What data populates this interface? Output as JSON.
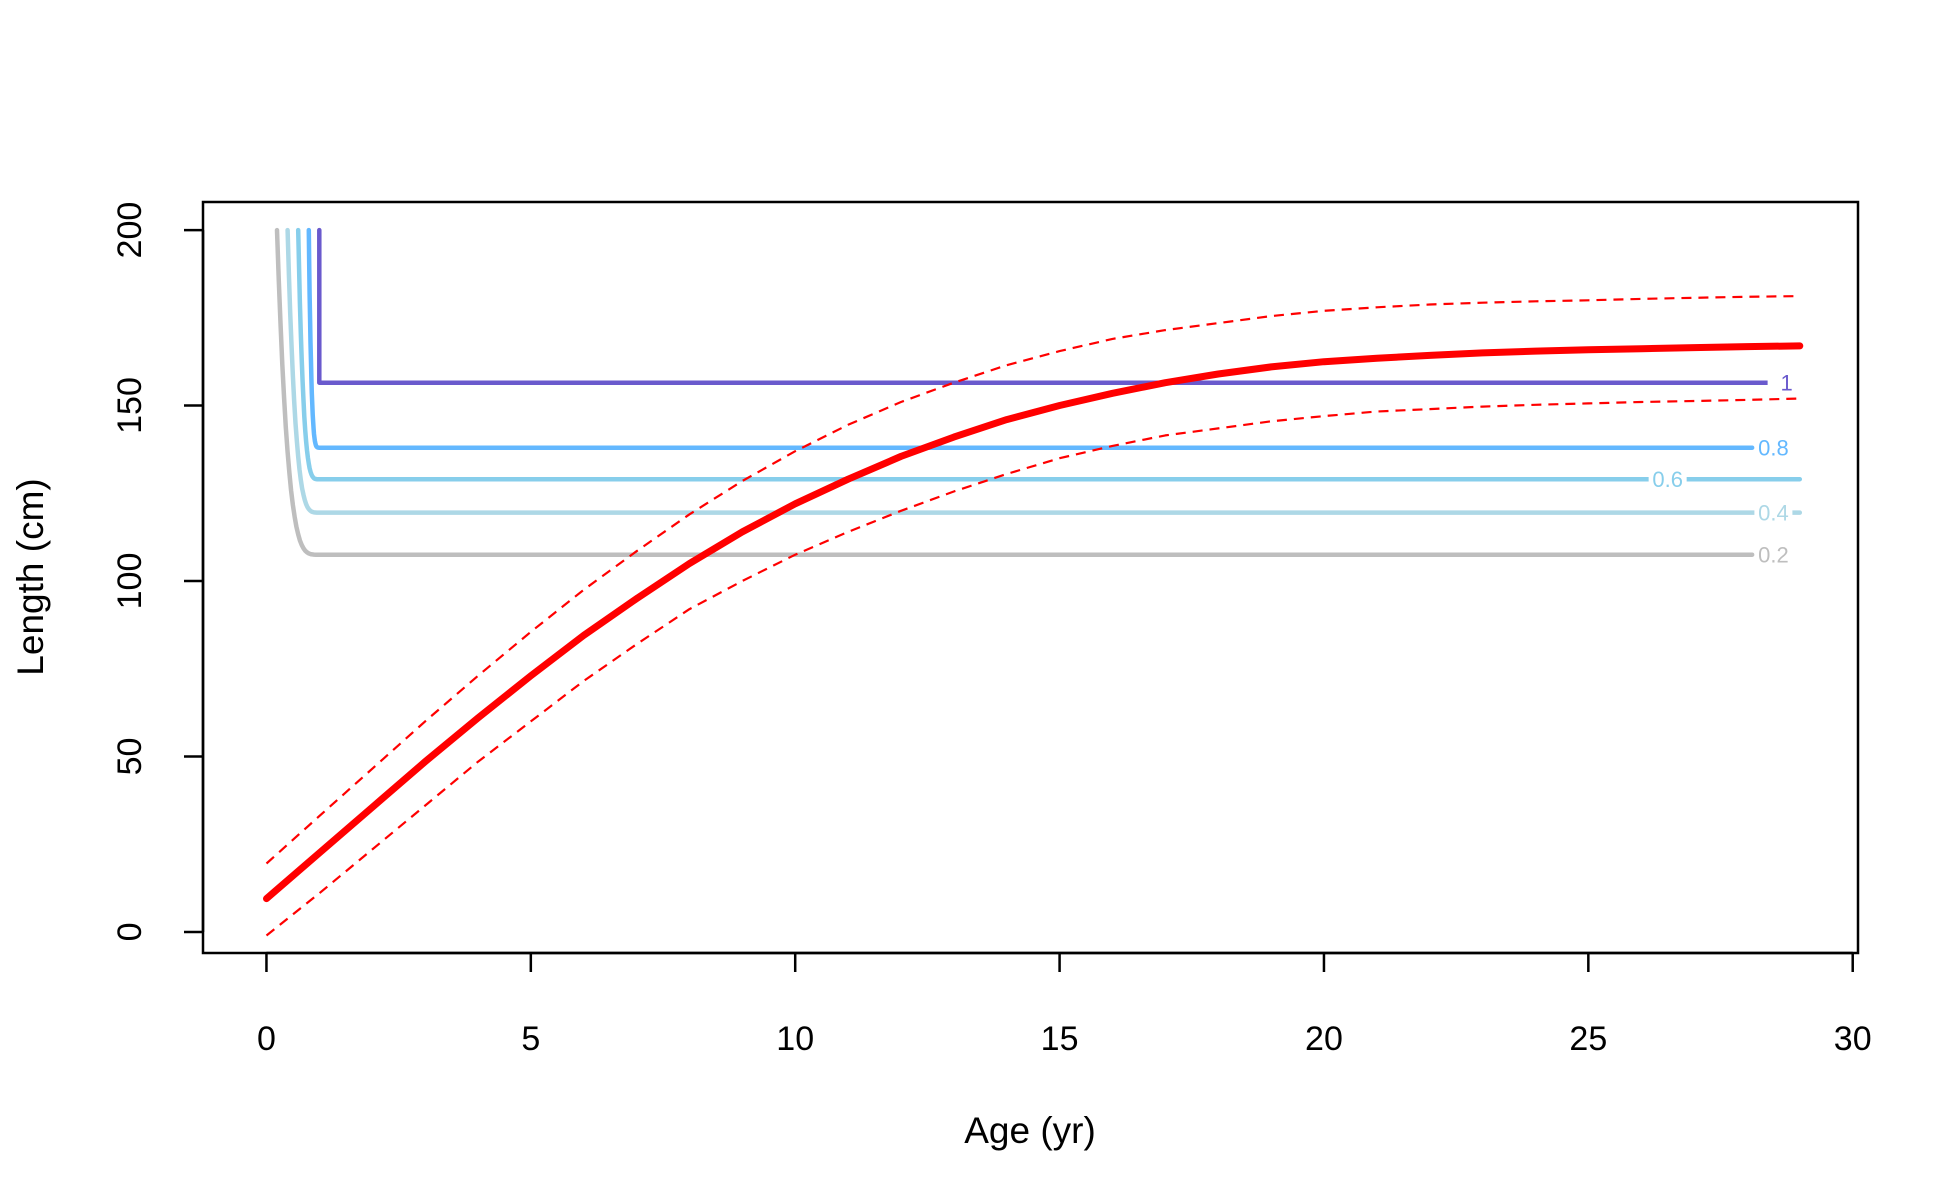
{
  "chart_data": {
    "type": "line",
    "title": "",
    "xlabel": "Age (yr)",
    "ylabel": "Length (cm)",
    "xlim": [
      -1.2,
      30.1
    ],
    "ylim": [
      -6,
      208
    ],
    "x_ticks": [
      0,
      5,
      10,
      15,
      20,
      25,
      30
    ],
    "y_ticks": [
      0,
      50,
      100,
      150,
      200
    ],
    "x_tick_labels": [
      "0",
      "5",
      "10",
      "15",
      "20",
      "25",
      "30"
    ],
    "y_tick_labels": [
      "0",
      "50",
      "100",
      "150",
      "200"
    ],
    "grid": false,
    "legend": "none",
    "growth_curve": {
      "color": "#ff0000",
      "x": [
        0,
        1,
        2,
        3,
        4,
        5,
        6,
        7,
        8,
        9,
        10,
        11,
        12,
        13,
        14,
        15,
        16,
        17,
        18,
        19,
        20,
        21,
        22,
        23,
        24,
        25,
        26,
        27,
        28,
        29
      ],
      "y": [
        9.5,
        22.5,
        35.5,
        48.5,
        61,
        73,
        84.5,
        95,
        105,
        114,
        122,
        129,
        135.5,
        141,
        146,
        150,
        153.5,
        156.5,
        159,
        161,
        162.5,
        163.5,
        164.3,
        165,
        165.5,
        165.9,
        166.2,
        166.5,
        166.8,
        167
      ]
    },
    "upper_interval": {
      "color": "#ff0000",
      "x": [
        0,
        1,
        2,
        3,
        4,
        5,
        6,
        7,
        8,
        9,
        10,
        11,
        12,
        13,
        14,
        15,
        16,
        17,
        18,
        19,
        20,
        21,
        22,
        23,
        24,
        25,
        26,
        27,
        28,
        29
      ],
      "y": [
        19.5,
        33,
        46.5,
        60,
        73,
        85.5,
        97.5,
        108.5,
        119,
        128.5,
        137,
        144.5,
        151,
        156.5,
        161.5,
        165.5,
        169,
        171.5,
        173.5,
        175.5,
        177,
        178,
        178.8,
        179.3,
        179.7,
        180,
        180.4,
        180.7,
        181,
        181.2
      ]
    },
    "lower_interval": {
      "color": "#ff0000",
      "x": [
        0,
        1,
        2,
        3,
        4,
        5,
        6,
        7,
        8,
        9,
        10,
        11,
        12,
        13,
        14,
        15,
        16,
        17,
        18,
        19,
        20,
        21,
        22,
        23,
        24,
        25,
        26,
        27,
        28,
        29
      ],
      "y": [
        -1,
        11,
        23.5,
        36,
        48.5,
        60,
        71.5,
        82,
        92,
        100,
        107.5,
        114,
        120,
        125.5,
        130.5,
        135,
        138.5,
        141.5,
        143.5,
        145.5,
        147,
        148.3,
        149,
        149.7,
        150.2,
        150.6,
        151,
        151.3,
        151.6,
        152
      ]
    },
    "contours": [
      {
        "level": "0.2",
        "color": "#bebebe",
        "x_start": 0.2,
        "x_end": 28.1,
        "plateau": 107.5,
        "corner": 1.0,
        "label_at": 28.5
      },
      {
        "level": "0.4",
        "color": "#add8e6",
        "x_start": 0.4,
        "x_end": 29.0,
        "plateau": 119.5,
        "corner": 1.0,
        "label_at": 28.5
      },
      {
        "level": "0.6",
        "color": "#87ceeb",
        "x_start": 0.6,
        "x_end": 29.0,
        "plateau": 129,
        "corner": 1.0,
        "label_at": 26.5
      },
      {
        "level": "0.8",
        "color": "#63b8ff",
        "x_start": 0.8,
        "x_end": 28.1,
        "plateau": 138,
        "corner": 1.0,
        "label_at": 28.5
      },
      {
        "level": "1",
        "color": "#6a5acd",
        "x_start": 1.0,
        "x_end": 28.5,
        "plateau": 156.5,
        "corner": 1.0,
        "label_at": 28.75
      }
    ]
  }
}
